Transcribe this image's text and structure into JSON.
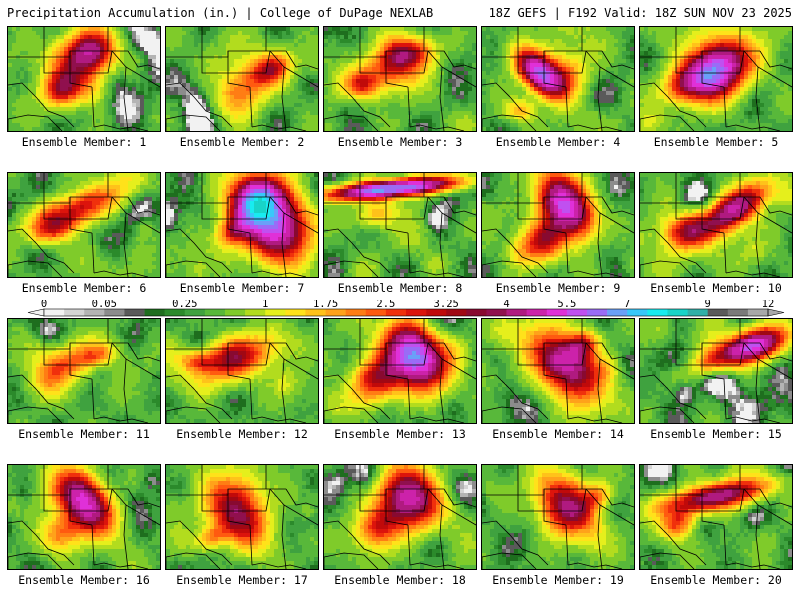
{
  "header": {
    "left_title": "Precipitation Accumulation (in.) | College of DuPage NEXLAB",
    "right_title": "18Z GEFS | F192 Valid: 18Z SUN NOV 23 2025"
  },
  "panels": [
    {
      "label": "Ensemble Member: 1",
      "cores": [
        [
          0.45,
          0.4,
          0.22,
          0.26,
          -0.6,
          2.3
        ],
        [
          0.55,
          0.22,
          0.15,
          0.18,
          -0.3,
          2.8
        ],
        [
          0.35,
          0.6,
          0.12,
          0.15,
          -0.5,
          2.2
        ]
      ]
    },
    {
      "label": "Ensemble Member: 2",
      "cores": [
        [
          0.52,
          0.58,
          0.25,
          0.2,
          -0.7,
          2.0
        ],
        [
          0.7,
          0.4,
          0.12,
          0.12,
          -0.5,
          2.0
        ]
      ]
    },
    {
      "label": "Ensemble Member: 3",
      "cores": [
        [
          0.45,
          0.42,
          0.25,
          0.2,
          -0.3,
          2.0
        ],
        [
          0.55,
          0.25,
          0.18,
          0.14,
          -0.2,
          2.4
        ],
        [
          0.25,
          0.55,
          0.1,
          0.12,
          0.0,
          1.6
        ]
      ]
    },
    {
      "label": "Ensemble Member: 4",
      "cores": [
        [
          0.38,
          0.45,
          0.1,
          0.28,
          -0.8,
          5.5
        ],
        [
          0.55,
          0.45,
          0.14,
          0.18,
          -0.5,
          1.6
        ],
        [
          0.25,
          0.8,
          0.1,
          0.1,
          0.0,
          1.4
        ]
      ]
    },
    {
      "label": "Ensemble Member: 5",
      "cores": [
        [
          0.5,
          0.4,
          0.22,
          0.24,
          -0.6,
          5.8
        ],
        [
          0.3,
          0.55,
          0.15,
          0.15,
          -0.5,
          2.0
        ]
      ]
    },
    {
      "label": "Ensemble Member: 6",
      "cores": [
        [
          0.45,
          0.35,
          0.3,
          0.15,
          -0.4,
          2.8
        ],
        [
          0.3,
          0.55,
          0.15,
          0.12,
          -0.3,
          1.6
        ]
      ]
    },
    {
      "label": "Ensemble Member: 7",
      "cores": [
        [
          0.68,
          0.45,
          0.2,
          0.38,
          -0.7,
          6.0
        ],
        [
          0.6,
          0.25,
          0.15,
          0.18,
          -0.4,
          3.2
        ],
        [
          0.45,
          0.55,
          0.12,
          0.12,
          -0.6,
          2.0
        ]
      ]
    },
    {
      "label": "Ensemble Member: 8",
      "cores": [
        [
          0.45,
          0.15,
          0.4,
          0.08,
          -0.1,
          6.5
        ],
        [
          0.35,
          0.4,
          0.15,
          0.12,
          -0.2,
          1.4
        ]
      ]
    },
    {
      "label": "Ensemble Member: 9",
      "cores": [
        [
          0.55,
          0.3,
          0.14,
          0.32,
          -0.6,
          5.6
        ],
        [
          0.4,
          0.65,
          0.15,
          0.18,
          -0.7,
          2.8
        ]
      ]
    },
    {
      "label": "Ensemble Member: 10",
      "cores": [
        [
          0.62,
          0.35,
          0.28,
          0.15,
          -0.6,
          4.0
        ],
        [
          0.3,
          0.55,
          0.15,
          0.15,
          -0.4,
          2.6
        ]
      ]
    },
    {
      "label": "Ensemble Member: 11",
      "cores": [
        [
          0.35,
          0.45,
          0.2,
          0.15,
          -0.5,
          1.9
        ],
        [
          0.6,
          0.35,
          0.12,
          0.1,
          -0.3,
          1.3
        ]
      ]
    },
    {
      "label": "Ensemble Member: 12",
      "cores": [
        [
          0.45,
          0.38,
          0.28,
          0.18,
          -0.3,
          3.0
        ],
        [
          0.2,
          0.4,
          0.1,
          0.1,
          0.0,
          1.5
        ]
      ]
    },
    {
      "label": "Ensemble Member: 13",
      "cores": [
        [
          0.6,
          0.35,
          0.16,
          0.32,
          -0.7,
          6.5
        ],
        [
          0.35,
          0.6,
          0.18,
          0.2,
          -0.6,
          2.4
        ]
      ]
    },
    {
      "label": "Ensemble Member: 14",
      "cores": [
        [
          0.55,
          0.45,
          0.16,
          0.4,
          -0.8,
          4.2
        ],
        [
          0.65,
          0.25,
          0.12,
          0.12,
          -0.5,
          2.2
        ]
      ]
    },
    {
      "label": "Ensemble Member: 15",
      "cores": [
        [
          0.75,
          0.25,
          0.2,
          0.14,
          -0.3,
          5.2
        ],
        [
          0.5,
          0.4,
          0.2,
          0.12,
          -0.3,
          1.6
        ]
      ]
    },
    {
      "label": "Ensemble Member: 16",
      "cores": [
        [
          0.5,
          0.35,
          0.14,
          0.32,
          -0.7,
          4.8
        ],
        [
          0.35,
          0.65,
          0.15,
          0.18,
          -0.5,
          2.3
        ]
      ]
    },
    {
      "label": "Ensemble Member: 17",
      "cores": [
        [
          0.45,
          0.45,
          0.16,
          0.38,
          -0.7,
          3.5
        ],
        [
          0.3,
          0.7,
          0.1,
          0.1,
          -0.5,
          1.6
        ]
      ]
    },
    {
      "label": "Ensemble Member: 18",
      "cores": [
        [
          0.55,
          0.3,
          0.18,
          0.28,
          -0.6,
          4.6
        ],
        [
          0.35,
          0.6,
          0.15,
          0.18,
          -0.5,
          2.2
        ]
      ]
    },
    {
      "label": "Ensemble Member: 19",
      "cores": [
        [
          0.55,
          0.4,
          0.14,
          0.38,
          -0.7,
          3.4
        ],
        [
          0.75,
          0.3,
          0.12,
          0.12,
          -0.4,
          1.6
        ]
      ]
    },
    {
      "label": "Ensemble Member: 20",
      "cores": [
        [
          0.5,
          0.3,
          0.34,
          0.12,
          -0.2,
          4.0
        ],
        [
          0.25,
          0.55,
          0.12,
          0.12,
          -0.3,
          1.6
        ]
      ]
    }
  ],
  "colorbar": {
    "labels": [
      "0",
      "0.05",
      "0.25",
      "1",
      "1.75",
      "2.5",
      "3.25",
      "4",
      "5.5",
      "7",
      "9",
      "12"
    ],
    "bins": [
      0,
      0.01,
      0.025,
      0.05,
      0.1,
      0.15,
      0.2,
      0.25,
      0.35,
      0.5,
      0.75,
      1,
      1.25,
      1.5,
      1.75,
      2,
      2.25,
      2.5,
      2.75,
      3,
      3.25,
      3.5,
      3.75,
      4,
      4.5,
      5,
      5.5,
      6,
      6.5,
      7,
      7.5,
      8,
      8.5,
      9,
      10,
      11,
      12
    ],
    "colors": [
      "#f2f2f2",
      "#d4d4d4",
      "#b4b4b4",
      "#8c8c8c",
      "#5a5a5a",
      "#1e6e1e",
      "#2b8a2b",
      "#3fa23f",
      "#58b83a",
      "#7fcb2a",
      "#b2dc1e",
      "#e5ef1c",
      "#ffe21a",
      "#ffc21a",
      "#ffa21a",
      "#ff7d14",
      "#ff5a10",
      "#f0300c",
      "#dc140c",
      "#c00a0a",
      "#a00814",
      "#880a30",
      "#90104e",
      "#b01a80",
      "#cc22aa",
      "#e030d8",
      "#c050f0",
      "#9a6cf6",
      "#6aa0f8",
      "#38c8fa",
      "#18ecf0",
      "#18d4c8",
      "#30b0a8",
      "#5a5a5a",
      "#7a7a7a",
      "#a8a8a8"
    ]
  }
}
